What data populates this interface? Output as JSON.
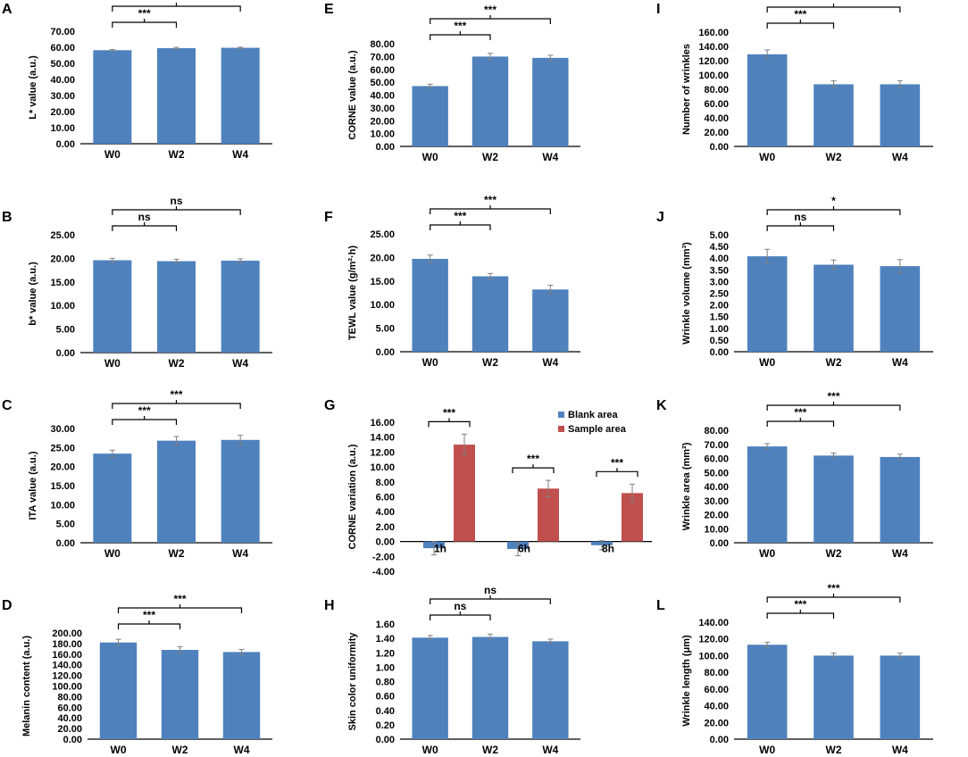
{
  "figure": {
    "panel_count": 12
  },
  "colors": {
    "bar": "#4f81bd",
    "bar_stroke": "#3d6aa3",
    "sample": "#c0504d",
    "axis": "#000000",
    "error": "#7f7f7f"
  },
  "chart_data": [
    {
      "panel": "A",
      "type": "bar",
      "ylabel": "L* value (a.u.)",
      "categories": [
        "W0",
        "W2",
        "W4"
      ],
      "values": [
        58.2,
        59.5,
        59.7
      ],
      "errors": [
        0.4,
        0.5,
        0.4
      ],
      "ylim": [
        0,
        70
      ],
      "yticks": [
        "0.00",
        "10.00",
        "20.00",
        "30.00",
        "40.00",
        "50.00",
        "60.00",
        "70.00"
      ],
      "comparisons": [
        {
          "from": 0,
          "to": 1,
          "label": "***"
        },
        {
          "from": 0,
          "to": 2,
          "label": "***"
        }
      ]
    },
    {
      "panel": "B",
      "type": "bar",
      "ylabel": "b* value (a.u.)",
      "categories": [
        "W0",
        "W2",
        "W4"
      ],
      "values": [
        19.6,
        19.4,
        19.5
      ],
      "errors": [
        0.4,
        0.4,
        0.4
      ],
      "ylim": [
        0,
        25
      ],
      "yticks": [
        "0.00",
        "5.00",
        "10.00",
        "15.00",
        "20.00",
        "25.00"
      ],
      "comparisons": [
        {
          "from": 0,
          "to": 1,
          "label": "ns"
        },
        {
          "from": 0,
          "to": 2,
          "label": "ns"
        }
      ]
    },
    {
      "panel": "C",
      "type": "bar",
      "ylabel": "ITA value (a.u.)",
      "categories": [
        "W0",
        "W2",
        "W4"
      ],
      "values": [
        23.4,
        26.8,
        27.0
      ],
      "errors": [
        0.9,
        1.1,
        1.2
      ],
      "ylim": [
        0,
        30
      ],
      "yticks": [
        "0.00",
        "5.00",
        "10.00",
        "15.00",
        "20.00",
        "25.00",
        "30.00"
      ],
      "comparisons": [
        {
          "from": 0,
          "to": 1,
          "label": "***"
        },
        {
          "from": 0,
          "to": 2,
          "label": "***"
        }
      ]
    },
    {
      "panel": "D",
      "type": "bar",
      "ylabel": "Melanin content (a.u.)",
      "categories": [
        "W0",
        "W2",
        "W4"
      ],
      "values": [
        182,
        168,
        164
      ],
      "errors": [
        6,
        6,
        5
      ],
      "ylim": [
        0,
        200
      ],
      "yticks": [
        "0.00",
        "20.00",
        "40.00",
        "60.00",
        "80.00",
        "100.00",
        "120.00",
        "140.00",
        "160.00",
        "180.00",
        "200.00"
      ],
      "comparisons": [
        {
          "from": 0,
          "to": 1,
          "label": "***"
        },
        {
          "from": 0,
          "to": 2,
          "label": "***"
        }
      ]
    },
    {
      "panel": "E",
      "type": "bar",
      "ylabel": "CORNE value (a.u.)",
      "categories": [
        "W0",
        "W2",
        "W4"
      ],
      "values": [
        47.0,
        70.0,
        69.0
      ],
      "errors": [
        1.5,
        2.5,
        2.0
      ],
      "ylim": [
        0,
        80
      ],
      "yticks": [
        "0.00",
        "10.00",
        "20.00",
        "30.00",
        "40.00",
        "50.00",
        "60.00",
        "70.00",
        "80.00"
      ],
      "comparisons": [
        {
          "from": 0,
          "to": 1,
          "label": "***"
        },
        {
          "from": 0,
          "to": 2,
          "label": "***"
        }
      ]
    },
    {
      "panel": "F",
      "type": "bar",
      "ylabel": "TEWL value (g/m²·h)",
      "categories": [
        "W0",
        "W2",
        "W4"
      ],
      "values": [
        19.7,
        16.0,
        13.2
      ],
      "errors": [
        0.8,
        0.6,
        0.9
      ],
      "ylim": [
        0,
        25
      ],
      "yticks": [
        "0.00",
        "5.00",
        "10.00",
        "15.00",
        "20.00",
        "25.00"
      ],
      "comparisons": [
        {
          "from": 0,
          "to": 1,
          "label": "***"
        },
        {
          "from": 0,
          "to": 2,
          "label": "***"
        }
      ]
    },
    {
      "panel": "G",
      "type": "bar",
      "ylabel": "CORNE variation (a.u.)",
      "categories": [
        "1h",
        "6h",
        "8h"
      ],
      "series": [
        {
          "name": "Blank area",
          "values": [
            -0.9,
            -1.0,
            -0.5
          ],
          "errors": [
            0.9,
            0.9,
            0.6
          ]
        },
        {
          "name": "Sample area",
          "values": [
            13.0,
            7.1,
            6.5
          ],
          "errors": [
            1.4,
            1.1,
            1.2
          ]
        }
      ],
      "ylim": [
        -4,
        16
      ],
      "yticks": [
        "-4.00",
        "-2.00",
        "0.00",
        "2.00",
        "4.00",
        "6.00",
        "8.00",
        "10.00",
        "12.00",
        "14.00",
        "16.00"
      ],
      "comparisons": [
        {
          "group": 0,
          "label": "***"
        },
        {
          "group": 1,
          "label": "***"
        },
        {
          "group": 2,
          "label": "***"
        }
      ],
      "legend": "top-right"
    },
    {
      "panel": "H",
      "type": "bar",
      "ylabel": "Skin color uniformity",
      "categories": [
        "W0",
        "W2",
        "W4"
      ],
      "values": [
        1.41,
        1.42,
        1.36
      ],
      "errors": [
        0.03,
        0.04,
        0.03
      ],
      "ylim": [
        0,
        1.6
      ],
      "yticks": [
        "0.00",
        "0.20",
        "0.40",
        "0.60",
        "0.80",
        "1.00",
        "1.20",
        "1.40",
        "1.60"
      ],
      "comparisons": [
        {
          "from": 0,
          "to": 1,
          "label": "ns"
        },
        {
          "from": 0,
          "to": 2,
          "label": "ns"
        }
      ]
    },
    {
      "panel": "I",
      "type": "bar",
      "ylabel": "Number of wrinkles",
      "categories": [
        "W0",
        "W2",
        "W4"
      ],
      "values": [
        129,
        87,
        87
      ],
      "errors": [
        6,
        5,
        5
      ],
      "ylim": [
        0,
        160
      ],
      "yticks": [
        "0.00",
        "20.00",
        "40.00",
        "60.00",
        "80.00",
        "100.00",
        "120.00",
        "140.00",
        "160.00"
      ],
      "comparisons": [
        {
          "from": 0,
          "to": 1,
          "label": "***"
        },
        {
          "from": 0,
          "to": 2,
          "label": "***"
        }
      ]
    },
    {
      "panel": "J",
      "type": "bar",
      "ylabel": "Wrinkle volume (mm³)",
      "categories": [
        "W0",
        "W2",
        "W4"
      ],
      "values": [
        4.08,
        3.72,
        3.66
      ],
      "errors": [
        0.3,
        0.2,
        0.28
      ],
      "ylim": [
        0,
        5
      ],
      "yticks": [
        "0.00",
        "0.50",
        "1.00",
        "1.50",
        "2.00",
        "2.50",
        "3.00",
        "3.50",
        "4.00",
        "4.50",
        "5.00"
      ],
      "comparisons": [
        {
          "from": 0,
          "to": 1,
          "label": "ns"
        },
        {
          "from": 0,
          "to": 2,
          "label": "*"
        }
      ]
    },
    {
      "panel": "K",
      "type": "bar",
      "ylabel": "Wrinkle area (mm²)",
      "categories": [
        "W0",
        "W2",
        "W4"
      ],
      "values": [
        68.5,
        62.0,
        61.0
      ],
      "errors": [
        2.0,
        1.8,
        2.0
      ],
      "ylim": [
        0,
        80
      ],
      "yticks": [
        "0.00",
        "10.00",
        "20.00",
        "30.00",
        "40.00",
        "50.00",
        "60.00",
        "70.00",
        "80.00"
      ],
      "comparisons": [
        {
          "from": 0,
          "to": 1,
          "label": "***"
        },
        {
          "from": 0,
          "to": 2,
          "label": "***"
        }
      ]
    },
    {
      "panel": "L",
      "type": "bar",
      "ylabel": "Wrinkle length (μm)",
      "categories": [
        "W0",
        "W2",
        "W4"
      ],
      "values": [
        113,
        100,
        100
      ],
      "errors": [
        3,
        3,
        3
      ],
      "ylim": [
        0,
        140
      ],
      "yticks": [
        "0.00",
        "20.00",
        "40.00",
        "60.00",
        "80.00",
        "100.00",
        "120.00",
        "140.00"
      ],
      "comparisons": [
        {
          "from": 0,
          "to": 1,
          "label": "***"
        },
        {
          "from": 0,
          "to": 2,
          "label": "***"
        }
      ]
    }
  ]
}
